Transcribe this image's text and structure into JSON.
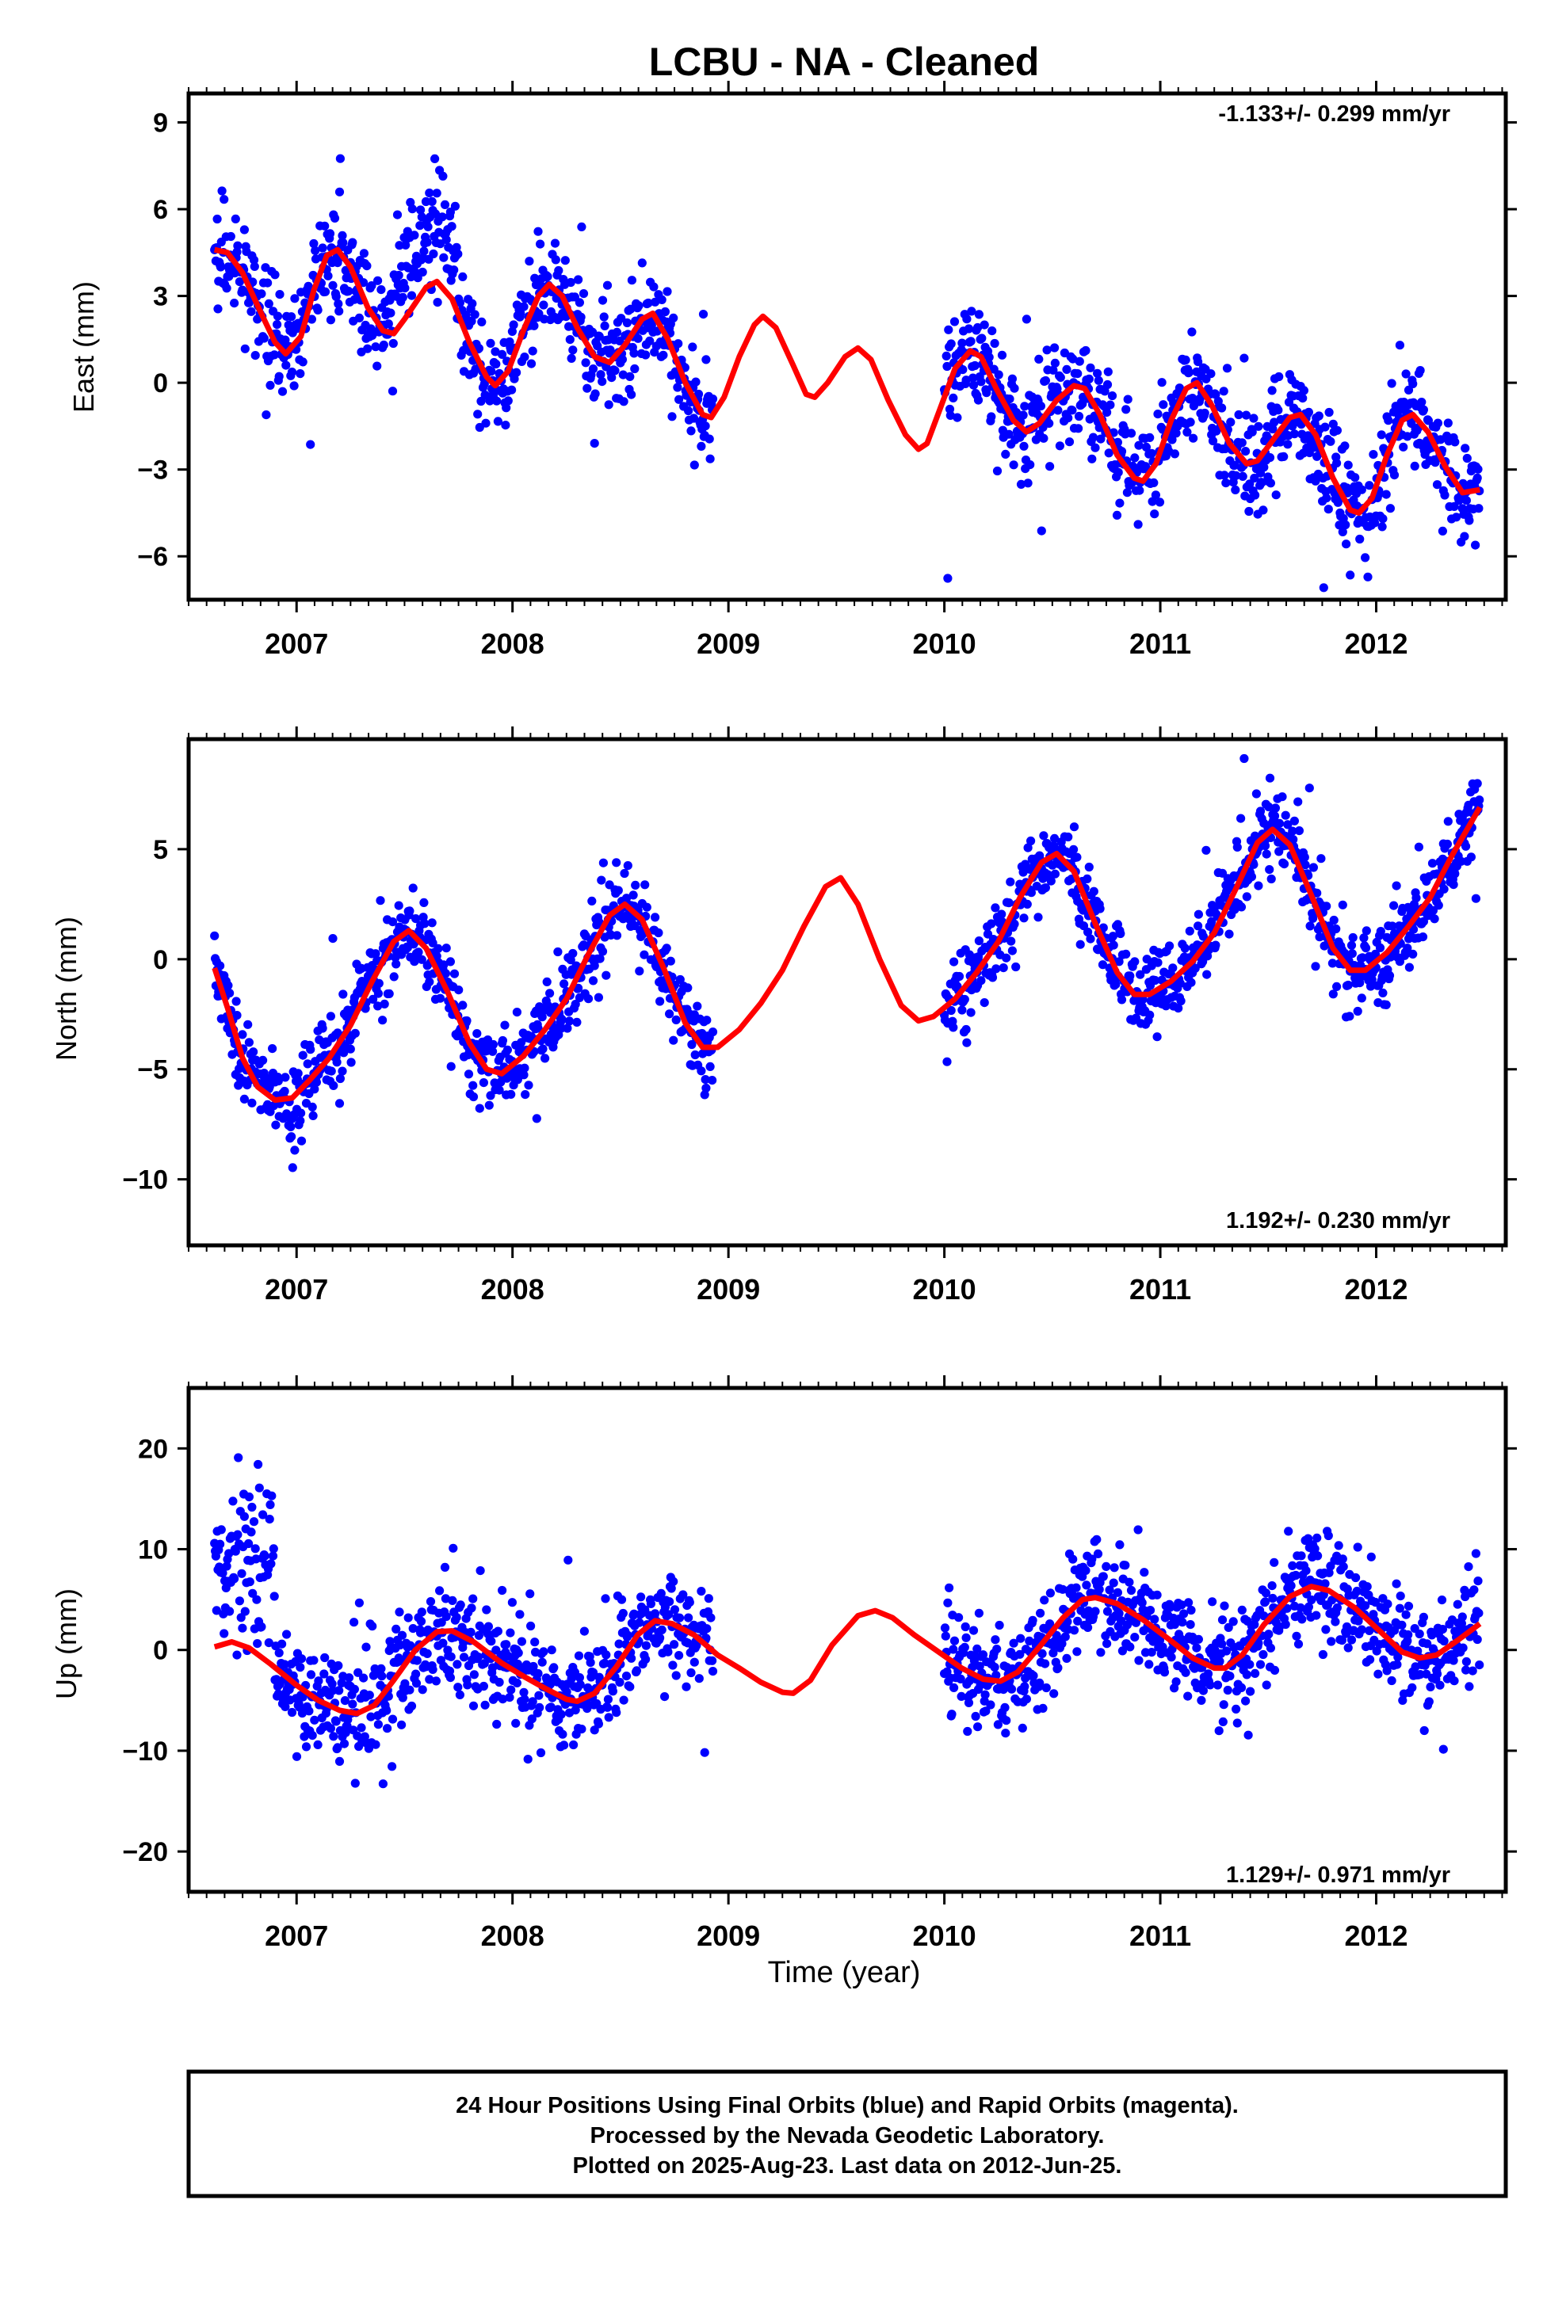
{
  "title": "LCBU  - NA - Cleaned",
  "xlabel": "Time (year)",
  "footer": {
    "line1": "24 Hour Positions Using Final Orbits (blue) and Rapid Orbits (magenta).",
    "line2": "Processed by the Nevada Geodetic Laboratory.",
    "line3": "Plotted on 2025-Aug-23. Last data on 2012-Jun-25."
  },
  "colors": {
    "data": "#0000ff",
    "model": "#ff0000",
    "axes": "#000000"
  },
  "chart_data": [
    {
      "type": "scatter",
      "component": "east",
      "ylabel": "East (mm)",
      "rate": "-1.133+/- 0.299 mm/yr",
      "xlim": [
        2006.5,
        2012.6
      ],
      "ylim": [
        -7.5,
        10.0
      ],
      "yticks": [
        -6,
        -3,
        0,
        3,
        6,
        9
      ],
      "xticks": [
        2007,
        2008,
        2009,
        2010,
        2011,
        2012
      ],
      "model": {
        "name": "fit",
        "points": [
          [
            2006.62,
            4.6
          ],
          [
            2006.68,
            4.5
          ],
          [
            2006.75,
            3.8
          ],
          [
            2006.83,
            2.5
          ],
          [
            2006.9,
            1.4
          ],
          [
            2006.95,
            1.0
          ],
          [
            2007.02,
            1.6
          ],
          [
            2007.08,
            3.2
          ],
          [
            2007.14,
            4.4
          ],
          [
            2007.19,
            4.6
          ],
          [
            2007.25,
            4.0
          ],
          [
            2007.33,
            2.6
          ],
          [
            2007.4,
            1.8
          ],
          [
            2007.45,
            1.7
          ],
          [
            2007.5,
            2.2
          ],
          [
            2007.6,
            3.3
          ],
          [
            2007.65,
            3.5
          ],
          [
            2007.72,
            2.9
          ],
          [
            2007.8,
            1.4
          ],
          [
            2007.88,
            0.2
          ],
          [
            2007.92,
            -0.1
          ],
          [
            2007.98,
            0.4
          ],
          [
            2008.05,
            1.8
          ],
          [
            2008.12,
            3.0
          ],
          [
            2008.17,
            3.4
          ],
          [
            2008.23,
            3.0
          ],
          [
            2008.3,
            1.9
          ],
          [
            2008.38,
            0.9
          ],
          [
            2008.45,
            0.7
          ],
          [
            2008.52,
            1.3
          ],
          [
            2008.6,
            2.2
          ],
          [
            2008.65,
            2.4
          ],
          [
            2008.72,
            1.5
          ],
          [
            2008.8,
            0.0
          ],
          [
            2008.88,
            -1.1
          ],
          [
            2008.92,
            -1.2
          ],
          [
            2008.98,
            -0.5
          ],
          [
            2009.05,
            0.9
          ],
          [
            2009.12,
            2.0
          ],
          [
            2009.16,
            2.3
          ],
          [
            2009.22,
            1.9
          ],
          [
            2009.3,
            0.6
          ],
          [
            2009.36,
            -0.4
          ],
          [
            2009.4,
            -0.5
          ],
          [
            2009.46,
            0.0
          ],
          [
            2009.54,
            0.9
          ],
          [
            2009.6,
            1.2
          ],
          [
            2009.66,
            0.8
          ],
          [
            2009.74,
            -0.6
          ],
          [
            2009.82,
            -1.8
          ],
          [
            2009.88,
            -2.3
          ],
          [
            2009.92,
            -2.1
          ],
          [
            2009.98,
            -0.9
          ],
          [
            2010.05,
            0.5
          ],
          [
            2010.12,
            1.1
          ],
          [
            2010.17,
            0.9
          ],
          [
            2010.24,
            -0.2
          ],
          [
            2010.32,
            -1.3
          ],
          [
            2010.38,
            -1.7
          ],
          [
            2010.44,
            -1.4
          ],
          [
            2010.52,
            -0.6
          ],
          [
            2010.6,
            -0.1
          ],
          [
            2010.65,
            -0.2
          ],
          [
            2010.72,
            -1.1
          ],
          [
            2010.8,
            -2.5
          ],
          [
            2010.88,
            -3.3
          ],
          [
            2010.92,
            -3.4
          ],
          [
            2010.98,
            -2.8
          ],
          [
            2011.05,
            -1.3
          ],
          [
            2011.12,
            -0.2
          ],
          [
            2011.17,
            0.0
          ],
          [
            2011.24,
            -0.8
          ],
          [
            2011.32,
            -2.1
          ],
          [
            2011.4,
            -2.8
          ],
          [
            2011.45,
            -2.7
          ],
          [
            2011.52,
            -2.0
          ],
          [
            2011.6,
            -1.2
          ],
          [
            2011.65,
            -1.1
          ],
          [
            2011.72,
            -1.8
          ],
          [
            2011.8,
            -3.3
          ],
          [
            2011.88,
            -4.4
          ],
          [
            2011.92,
            -4.5
          ],
          [
            2011.98,
            -4.0
          ],
          [
            2012.05,
            -2.5
          ],
          [
            2012.12,
            -1.3
          ],
          [
            2012.17,
            -1.1
          ],
          [
            2012.24,
            -1.7
          ],
          [
            2012.32,
            -2.9
          ],
          [
            2012.4,
            -3.8
          ],
          [
            2012.48,
            -3.7
          ]
        ]
      }
    },
    {
      "type": "scatter",
      "component": "north",
      "ylabel": "North (mm)",
      "rate": "1.192+/- 0.230 mm/yr",
      "xlim": [
        2006.5,
        2012.6
      ],
      "ylim": [
        -13.0,
        10.0
      ],
      "yticks": [
        -10,
        -5,
        0,
        5
      ],
      "xticks": [
        2007,
        2008,
        2009,
        2010,
        2011,
        2012
      ],
      "model": {
        "name": "fit",
        "points": [
          [
            2006.62,
            -0.4
          ],
          [
            2006.68,
            -2.2
          ],
          [
            2006.75,
            -4.5
          ],
          [
            2006.82,
            -5.8
          ],
          [
            2006.9,
            -6.4
          ],
          [
            2006.98,
            -6.3
          ],
          [
            2007.06,
            -5.5
          ],
          [
            2007.15,
            -4.5
          ],
          [
            2007.25,
            -3.0
          ],
          [
            2007.35,
            -1.0
          ],
          [
            2007.45,
            0.8
          ],
          [
            2007.52,
            1.3
          ],
          [
            2007.6,
            0.5
          ],
          [
            2007.7,
            -1.5
          ],
          [
            2007.8,
            -3.8
          ],
          [
            2007.88,
            -5.0
          ],
          [
            2007.95,
            -5.2
          ],
          [
            2008.05,
            -4.4
          ],
          [
            2008.15,
            -3.2
          ],
          [
            2008.25,
            -1.8
          ],
          [
            2008.35,
            0.2
          ],
          [
            2008.45,
            2.0
          ],
          [
            2008.52,
            2.5
          ],
          [
            2008.6,
            1.8
          ],
          [
            2008.7,
            -0.4
          ],
          [
            2008.8,
            -2.9
          ],
          [
            2008.88,
            -4.0
          ],
          [
            2008.95,
            -4.0
          ],
          [
            2009.05,
            -3.2
          ],
          [
            2009.15,
            -2.0
          ],
          [
            2009.25,
            -0.5
          ],
          [
            2009.35,
            1.5
          ],
          [
            2009.45,
            3.3
          ],
          [
            2009.52,
            3.7
          ],
          [
            2009.6,
            2.5
          ],
          [
            2009.7,
            0.0
          ],
          [
            2009.8,
            -2.1
          ],
          [
            2009.88,
            -2.8
          ],
          [
            2009.95,
            -2.6
          ],
          [
            2010.05,
            -1.8
          ],
          [
            2010.15,
            -0.6
          ],
          [
            2010.25,
            0.8
          ],
          [
            2010.35,
            2.8
          ],
          [
            2010.45,
            4.4
          ],
          [
            2010.52,
            4.8
          ],
          [
            2010.6,
            4.0
          ],
          [
            2010.7,
            1.6
          ],
          [
            2010.8,
            -0.6
          ],
          [
            2010.88,
            -1.6
          ],
          [
            2010.95,
            -1.6
          ],
          [
            2011.05,
            -1.0
          ],
          [
            2011.15,
            -0.1
          ],
          [
            2011.25,
            1.2
          ],
          [
            2011.35,
            3.2
          ],
          [
            2011.45,
            5.3
          ],
          [
            2011.52,
            5.9
          ],
          [
            2011.6,
            5.2
          ],
          [
            2011.7,
            2.9
          ],
          [
            2011.8,
            0.5
          ],
          [
            2011.88,
            -0.5
          ],
          [
            2011.95,
            -0.5
          ],
          [
            2012.05,
            0.3
          ],
          [
            2012.15,
            1.5
          ],
          [
            2012.25,
            2.8
          ],
          [
            2012.35,
            4.7
          ],
          [
            2012.48,
            6.9
          ]
        ]
      }
    },
    {
      "type": "scatter",
      "component": "up",
      "ylabel": "Up (mm)",
      "rate": "1.129+/- 0.971 mm/yr",
      "xlim": [
        2006.5,
        2012.6
      ],
      "ylim": [
        -24.0,
        26.0
      ],
      "yticks": [
        -20,
        -10,
        0,
        10,
        20
      ],
      "xticks": [
        2007,
        2008,
        2009,
        2010,
        2011,
        2012
      ],
      "model": {
        "name": "fit",
        "points": [
          [
            2006.62,
            0.3
          ],
          [
            2006.7,
            0.8
          ],
          [
            2006.78,
            0.2
          ],
          [
            2006.88,
            -1.4
          ],
          [
            2007.0,
            -3.5
          ],
          [
            2007.1,
            -5.0
          ],
          [
            2007.2,
            -6.0
          ],
          [
            2007.28,
            -6.3
          ],
          [
            2007.36,
            -5.5
          ],
          [
            2007.45,
            -3.0
          ],
          [
            2007.55,
            0.0
          ],
          [
            2007.65,
            1.8
          ],
          [
            2007.72,
            1.9
          ],
          [
            2007.82,
            0.8
          ],
          [
            2007.95,
            -1.3
          ],
          [
            2008.05,
            -2.6
          ],
          [
            2008.15,
            -3.8
          ],
          [
            2008.25,
            -4.9
          ],
          [
            2008.3,
            -5.1
          ],
          [
            2008.38,
            -4.3
          ],
          [
            2008.48,
            -1.7
          ],
          [
            2008.58,
            1.5
          ],
          [
            2008.66,
            2.9
          ],
          [
            2008.74,
            2.6
          ],
          [
            2008.84,
            1.5
          ],
          [
            2008.95,
            -0.5
          ],
          [
            2009.05,
            -1.8
          ],
          [
            2009.15,
            -3.2
          ],
          [
            2009.25,
            -4.2
          ],
          [
            2009.3,
            -4.3
          ],
          [
            2009.38,
            -3.0
          ],
          [
            2009.48,
            0.5
          ],
          [
            2009.6,
            3.4
          ],
          [
            2009.68,
            3.9
          ],
          [
            2009.76,
            3.2
          ],
          [
            2009.86,
            1.5
          ],
          [
            2009.98,
            -0.3
          ],
          [
            2010.08,
            -1.8
          ],
          [
            2010.18,
            -2.9
          ],
          [
            2010.26,
            -3.1
          ],
          [
            2010.34,
            -2.2
          ],
          [
            2010.44,
            0.3
          ],
          [
            2010.55,
            3.2
          ],
          [
            2010.64,
            5.0
          ],
          [
            2010.7,
            5.2
          ],
          [
            2010.8,
            4.6
          ],
          [
            2010.92,
            3.0
          ],
          [
            2011.05,
            0.9
          ],
          [
            2011.15,
            -0.8
          ],
          [
            2011.25,
            -1.8
          ],
          [
            2011.3,
            -1.8
          ],
          [
            2011.38,
            -0.5
          ],
          [
            2011.48,
            2.5
          ],
          [
            2011.6,
            5.3
          ],
          [
            2011.7,
            6.3
          ],
          [
            2011.78,
            5.9
          ],
          [
            2011.9,
            4.2
          ],
          [
            2012.02,
            1.8
          ],
          [
            2012.12,
            -0.2
          ],
          [
            2012.2,
            -0.8
          ],
          [
            2012.28,
            -0.5
          ],
          [
            2012.38,
            1.0
          ],
          [
            2012.48,
            2.6
          ]
        ]
      }
    }
  ]
}
